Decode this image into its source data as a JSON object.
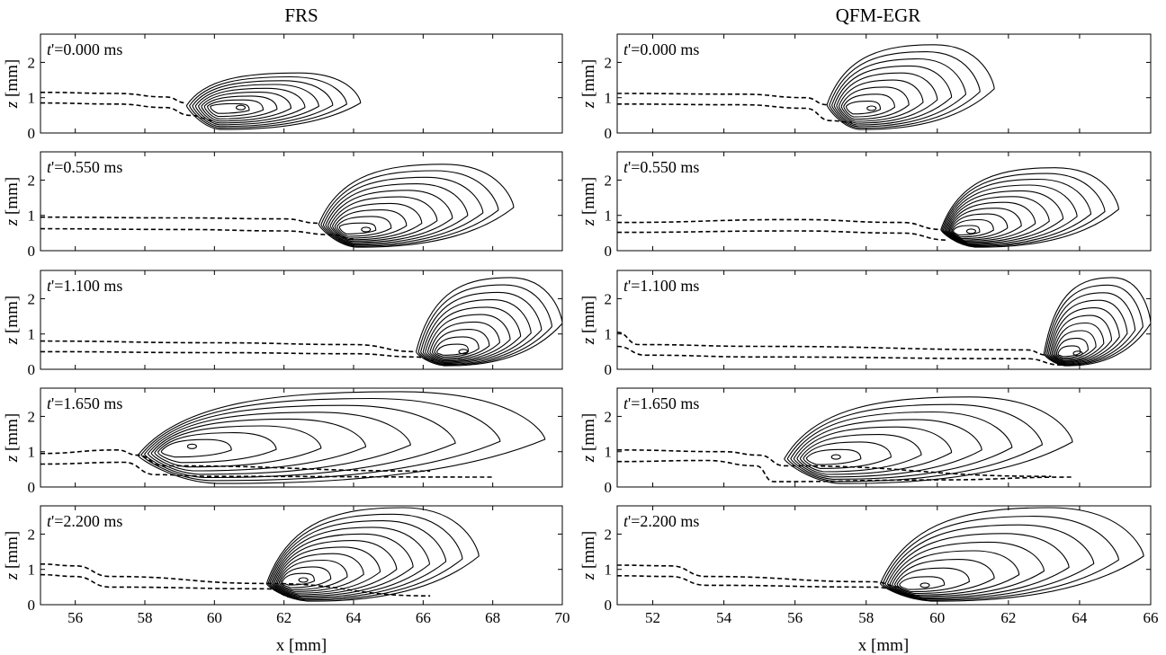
{
  "chart_data": [
    {
      "type": "contour",
      "title": "FRS",
      "xlabel": "x [mm]",
      "ylabel": "z [mm]",
      "xlim": [
        55,
        70
      ],
      "ylim": [
        0,
        2.8
      ],
      "xticks": [
        56,
        58,
        60,
        62,
        64,
        66,
        68,
        70
      ],
      "yticks": [
        0,
        1,
        2
      ],
      "panels": [
        {
          "time_label": "=0.000 ms",
          "dashed_upper": [
            [
              55,
              1.15
            ],
            [
              57.2,
              1.12
            ],
            [
              58.6,
              1.02
            ],
            [
              59.2,
              0.85
            ]
          ],
          "dashed_lower": [
            [
              55,
              0.85
            ],
            [
              57.2,
              0.82
            ],
            [
              58.6,
              0.72
            ],
            [
              59.3,
              0.5
            ],
            [
              60.0,
              0.35
            ]
          ],
          "front_x": 59.2,
          "front_z": 0.78,
          "tail_x": 64.2,
          "peak_x": 60.6,
          "peak_z": 0.72,
          "top_z": 1.7,
          "contours": 9
        },
        {
          "time_label": "=0.550 ms",
          "dashed_upper": [
            [
              55,
              0.95
            ],
            [
              59,
              0.93
            ],
            [
              62,
              0.9
            ],
            [
              63.0,
              0.78
            ]
          ],
          "dashed_lower": [
            [
              55,
              0.62
            ],
            [
              59,
              0.6
            ],
            [
              62,
              0.56
            ],
            [
              63.4,
              0.45
            ],
            [
              64.0,
              0.32
            ]
          ],
          "front_x": 63.0,
          "front_z": 0.75,
          "tail_x": 68.6,
          "peak_x": 64.2,
          "peak_z": 0.6,
          "top_z": 2.45,
          "contours": 10
        },
        {
          "time_label": "=1.100 ms",
          "dashed_upper": [
            [
              55,
              0.8
            ],
            [
              60,
              0.75
            ],
            [
              64,
              0.7
            ],
            [
              65.8,
              0.5
            ]
          ],
          "dashed_lower": [
            [
              55,
              0.5
            ],
            [
              60,
              0.47
            ],
            [
              64,
              0.44
            ],
            [
              65.8,
              0.35
            ],
            [
              66.3,
              0.25
            ]
          ],
          "front_x": 65.8,
          "front_z": 0.5,
          "tail_x": 70,
          "peak_x": 67.0,
          "peak_z": 0.5,
          "top_z": 2.6,
          "contours": 10
        },
        {
          "time_label": "=1.650 ms",
          "dashed_upper": [
            [
              55,
              0.95
            ],
            [
              57.2,
              1.05
            ],
            [
              57.8,
              0.9
            ],
            [
              58.5,
              0.6
            ],
            [
              66.2,
              0.45
            ]
          ],
          "dashed_lower": [
            [
              55,
              0.65
            ],
            [
              57.4,
              0.7
            ],
            [
              58.3,
              0.35
            ],
            [
              60,
              0.3
            ],
            [
              68,
              0.28
            ]
          ],
          "front_x": 57.8,
          "front_z": 0.9,
          "tail_x": 69.5,
          "peak_x": 59.2,
          "peak_z": 1.15,
          "top_z": 2.7,
          "contours": 8
        },
        {
          "time_label": "=2.200 ms",
          "dashed_upper": [
            [
              55,
              1.15
            ],
            [
              56,
              1.1
            ],
            [
              57,
              0.8
            ],
            [
              61.5,
              0.6
            ],
            [
              66.2,
              0.25
            ]
          ],
          "dashed_lower": [
            [
              55,
              0.85
            ],
            [
              56,
              0.8
            ],
            [
              57,
              0.5
            ],
            [
              61.5,
              0.45
            ],
            [
              62.3,
              0.2
            ]
          ],
          "front_x": 61.5,
          "front_z": 0.6,
          "tail_x": 67.6,
          "peak_x": 62.4,
          "peak_z": 0.7,
          "top_z": 2.75,
          "contours": 11
        }
      ]
    },
    {
      "type": "contour",
      "title": "QFM-EGR",
      "xlabel": "x [mm]",
      "ylabel": "z [mm]",
      "xlim": [
        51,
        66
      ],
      "ylim": [
        0,
        2.8
      ],
      "xticks": [
        52,
        54,
        56,
        58,
        60,
        62,
        64,
        66
      ],
      "yticks": [
        0,
        1,
        2
      ],
      "panels": [
        {
          "time_label": "=0.000 ms",
          "dashed_upper": [
            [
              51,
              1.12
            ],
            [
              54.5,
              1.1
            ],
            [
              56.3,
              1.0
            ],
            [
              56.9,
              0.8
            ]
          ],
          "dashed_lower": [
            [
              51,
              0.82
            ],
            [
              54.5,
              0.8
            ],
            [
              56.3,
              0.7
            ],
            [
              57.0,
              0.35
            ],
            [
              57.6,
              0.3
            ]
          ],
          "front_x": 56.9,
          "front_z": 0.8,
          "tail_x": 61.6,
          "peak_x": 58.0,
          "peak_z": 0.7,
          "top_z": 2.5,
          "contours": 9
        },
        {
          "time_label": "=0.550 ms",
          "dashed_upper": [
            [
              51,
              0.8
            ],
            [
              56,
              0.88
            ],
            [
              59,
              0.8
            ],
            [
              60.1,
              0.6
            ]
          ],
          "dashed_lower": [
            [
              51,
              0.52
            ],
            [
              56,
              0.56
            ],
            [
              59,
              0.5
            ],
            [
              60.3,
              0.3
            ]
          ],
          "front_x": 60.1,
          "front_z": 0.6,
          "tail_x": 65.1,
          "peak_x": 60.8,
          "peak_z": 0.55,
          "top_z": 2.35,
          "contours": 11
        },
        {
          "time_label": "=1.100 ms",
          "dashed_upper": [
            [
              51,
              1.05
            ],
            [
              51.6,
              0.7
            ],
            [
              55,
              0.65
            ],
            [
              62.5,
              0.55
            ],
            [
              63.1,
              0.4
            ]
          ],
          "dashed_lower": [
            [
              51,
              0.65
            ],
            [
              51.8,
              0.4
            ],
            [
              55,
              0.35
            ],
            [
              62.5,
              0.3
            ],
            [
              63.5,
              0.12
            ]
          ],
          "front_x": 63.0,
          "front_z": 0.45,
          "tail_x": 66,
          "peak_x": 63.8,
          "peak_z": 0.45,
          "top_z": 2.6,
          "contours": 10
        },
        {
          "time_label": "=1.650 ms",
          "dashed_upper": [
            [
              51,
              1.05
            ],
            [
              54,
              1.0
            ],
            [
              55,
              0.9
            ],
            [
              55.7,
              0.6
            ],
            [
              63.2,
              0.3
            ]
          ],
          "dashed_lower": [
            [
              51,
              0.72
            ],
            [
              53.5,
              0.75
            ],
            [
              54.9,
              0.6
            ],
            [
              55.4,
              0.15
            ],
            [
              60,
              0.2
            ],
            [
              63.8,
              0.28
            ]
          ],
          "front_x": 55.7,
          "front_z": 0.8,
          "tail_x": 63.8,
          "peak_x": 57.0,
          "peak_z": 0.85,
          "top_z": 2.55,
          "contours": 8
        },
        {
          "time_label": "=2.200 ms",
          "dashed_upper": [
            [
              51,
              1.12
            ],
            [
              52.5,
              1.1
            ],
            [
              53.5,
              0.8
            ],
            [
              58.2,
              0.65
            ],
            [
              59.0,
              0.5
            ]
          ],
          "dashed_lower": [
            [
              51,
              0.82
            ],
            [
              52.5,
              0.8
            ],
            [
              53.5,
              0.55
            ],
            [
              58.2,
              0.5
            ],
            [
              59.5,
              0.25
            ]
          ],
          "front_x": 58.4,
          "front_z": 0.6,
          "tail_x": 65.8,
          "peak_x": 59.5,
          "peak_z": 0.55,
          "top_z": 2.75,
          "contours": 9
        }
      ]
    }
  ],
  "time_prefix": "t",
  "time_prime": "'"
}
